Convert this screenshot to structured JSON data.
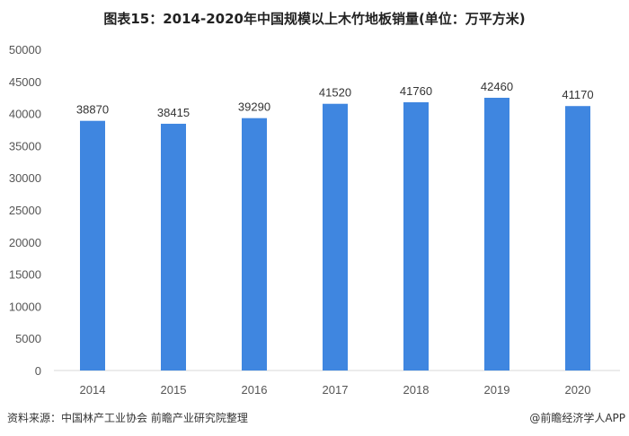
{
  "chart_data": {
    "type": "bar",
    "title": "图表15：2014-2020年中国规模以上木竹地板销量(单位：万平方米)",
    "categories": [
      "2014",
      "2015",
      "2016",
      "2017",
      "2018",
      "2019",
      "2020"
    ],
    "values": [
      38870,
      38415,
      39290,
      41520,
      41760,
      42460,
      41170
    ],
    "ylim": [
      0,
      50000
    ],
    "yticks": [
      0,
      5000,
      10000,
      15000,
      20000,
      25000,
      30000,
      35000,
      40000,
      45000,
      50000
    ],
    "xlabel": "",
    "ylabel": "",
    "grid": false,
    "bar_color": "#3f86e0",
    "data_labels": true
  },
  "footer": {
    "source": "资料来源：中国林产工业协会 前瞻产业研究院整理",
    "credit": "@前瞻经济学人APP"
  }
}
